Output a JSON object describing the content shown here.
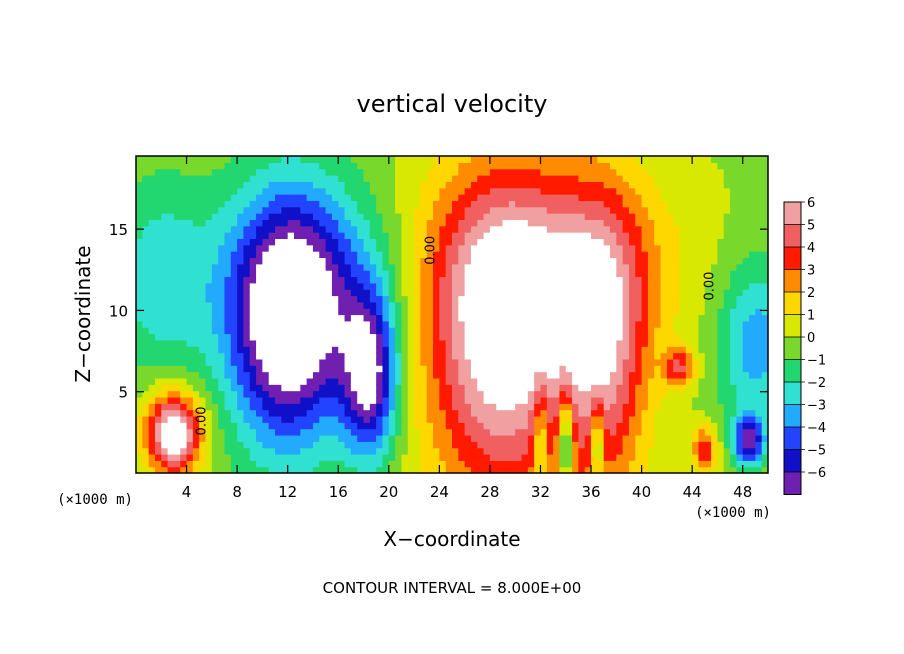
{
  "chart_data": {
    "type": "heatmap",
    "title": "vertical velocity",
    "xlabel": "X−coordinate",
    "ylabel": "Z−coordinate",
    "x_unit_label_left": "(×1000 m)",
    "x_unit_label_right": "(×1000 m)",
    "footer": "CONTOUR INTERVAL = 8.000E+00",
    "xlim": [
      0,
      50
    ],
    "ylim": [
      0,
      19.5
    ],
    "x_ticks": [
      4,
      8,
      12,
      16,
      20,
      24,
      28,
      32,
      36,
      40,
      44,
      48
    ],
    "x_tick_labels": [
      "4",
      "8",
      "12",
      "16",
      "20",
      "24",
      "28",
      "32",
      "36",
      "40",
      "44",
      "48"
    ],
    "y_ticks": [
      5,
      10,
      15
    ],
    "y_tick_labels": [
      "5",
      "10",
      "15"
    ],
    "contour_labels": [
      {
        "text": "0.00",
        "x": 5.5,
        "y": 3.2
      },
      {
        "text": "0.00",
        "x": 23.6,
        "y": 13.7
      },
      {
        "text": "0.00",
        "x": 45.7,
        "y": 11.5
      }
    ],
    "colorbar": {
      "levels": [
        6,
        5,
        4,
        3,
        2,
        1,
        0,
        -1,
        -2,
        -3,
        -4,
        -5,
        -6
      ],
      "level_labels": [
        "6",
        "5",
        "4",
        "3",
        "2",
        "1",
        "0",
        "−1",
        "−2",
        "−3",
        "−4",
        "−5",
        "−6"
      ],
      "colors": [
        "#f0a0a0",
        "#f06060",
        "#ff1a00",
        "#ff8c00",
        "#ffd700",
        "#d8e800",
        "#78d82c",
        "#22d670",
        "#30e0d0",
        "#22aaff",
        "#2244ff",
        "#1010c8",
        "#7020b0"
      ]
    },
    "features": [
      {
        "kind": "updraft",
        "x": 29,
        "y": 8,
        "rx": 6,
        "ry": 10,
        "amp": 7
      },
      {
        "kind": "updraft",
        "x": 37,
        "y": 7.5,
        "rx": 3.5,
        "ry": 9,
        "amp": 5
      },
      {
        "kind": "updraft",
        "x": 33,
        "y": 13,
        "rx": 10,
        "ry": 6,
        "amp": 3
      },
      {
        "kind": "updraft",
        "x": 3,
        "y": 2.5,
        "rx": 2.2,
        "ry": 2.5,
        "amp": 8
      },
      {
        "kind": "updraft",
        "x": 43,
        "y": 6.5,
        "rx": 1.2,
        "ry": 1.2,
        "amp": 4
      },
      {
        "kind": "updraft",
        "x": 45,
        "y": 1.5,
        "rx": 1.0,
        "ry": 1.5,
        "amp": 4
      },
      {
        "kind": "downdraft",
        "x": 12,
        "y": 9,
        "rx": 4.5,
        "ry": 7.5,
        "amp": -8
      },
      {
        "kind": "downdraft",
        "x": 18.5,
        "y": 6,
        "rx": 2.2,
        "ry": 5,
        "amp": -7
      },
      {
        "kind": "downdraft",
        "x": 14,
        "y": 12,
        "rx": 7,
        "ry": 6,
        "amp": -3
      },
      {
        "kind": "downdraft",
        "x": 2,
        "y": 12,
        "rx": 4,
        "ry": 6,
        "amp": -2.5
      },
      {
        "kind": "downdraft",
        "x": 49,
        "y": 8,
        "rx": 3,
        "ry": 5,
        "amp": -3.5
      },
      {
        "kind": "downdraft",
        "x": 34,
        "y": 2,
        "rx": 0.6,
        "ry": 3,
        "amp": -5
      },
      {
        "kind": "downdraft",
        "x": 36.5,
        "y": 2,
        "rx": 0.5,
        "ry": 2.5,
        "amp": -4
      },
      {
        "kind": "downdraft",
        "x": 48.5,
        "y": 2,
        "rx": 1.2,
        "ry": 1.5,
        "amp": -6
      },
      {
        "kind": "downdraft",
        "x": 32,
        "y": 2.5,
        "rx": 0.6,
        "ry": 3,
        "amp": -3
      }
    ]
  }
}
